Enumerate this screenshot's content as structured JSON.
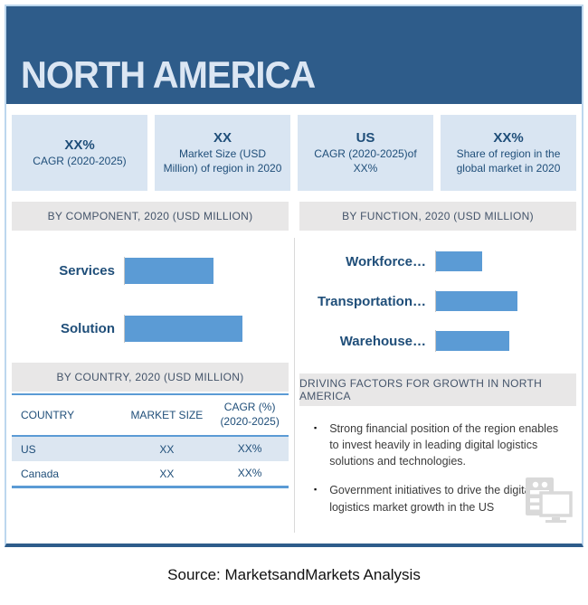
{
  "header": {
    "title": "NORTH AMERICA"
  },
  "stats": [
    {
      "value": "XX%",
      "label": "CAGR (2020-2025)"
    },
    {
      "value": "XX",
      "label": "Market Size (USD Million) of region in 2020"
    },
    {
      "value": "US",
      "label": "CAGR (2020-2025)of XX%"
    },
    {
      "value": "XX%",
      "label": "Share of region in the global market in 2020"
    }
  ],
  "left": {
    "component_header": "BY COMPONENT, 2020 (USD MILLION)",
    "country_header": "BY COUNTRY, 2020 (USD MILLION)",
    "table": {
      "columns": [
        {
          "label": "COUNTRY",
          "sub": ""
        },
        {
          "label": "MARKET SIZE",
          "sub": ""
        },
        {
          "label": "CAGR (%)",
          "sub": "(2020-2025)"
        }
      ],
      "rows": [
        [
          "US",
          "XX",
          "XX%"
        ],
        [
          "Canada",
          "XX",
          "XX%"
        ]
      ]
    }
  },
  "right": {
    "function_header": "BY FUNCTION, 2020 (USD MILLION)",
    "driving_header": "DRIVING FACTORS FOR GROWTH IN NORTH AMERICA",
    "bullets": [
      "Strong financial position of the region enables to invest heavily in leading digital logistics solutions and technologies.",
      "Government initiatives to drive the digital logistics market growth in the US"
    ]
  },
  "chart_data": [
    {
      "type": "bar",
      "orientation": "horizontal",
      "title": "BY COMPONENT, 2020 (USD MILLION)",
      "categories": [
        "Services",
        "Solution"
      ],
      "values": [
        "XX",
        "XX"
      ],
      "bar_length_pct": [
        54,
        72
      ],
      "bar_color": "#5b9bd5",
      "note": "numeric values masked as XX in source; bar lengths estimated from pixel proportions"
    },
    {
      "type": "bar",
      "orientation": "horizontal",
      "title": "BY FUNCTION, 2020 (USD MILLION)",
      "categories": [
        "Workforce…",
        "Transportation…",
        "Warehouse…"
      ],
      "values": [
        "XX",
        "XX",
        "XX"
      ],
      "bar_length_pct": [
        33,
        58,
        52
      ],
      "bar_color": "#5b9bd5",
      "note": "numeric values masked as XX in source; bar lengths estimated from pixel proportions"
    }
  ],
  "footer": {
    "source": "Source: MarketsandMarkets Analysis"
  },
  "colors": {
    "header_bg": "#2e5c8a",
    "stat_box_bg": "#d9e5f2",
    "navy_text": "#1f4e79",
    "bar_blue": "#5b9bd5",
    "section_header_bg": "#e8e7e7",
    "section_header_text": "#44546a",
    "table_row_alt": "#dce6f1",
    "frame_border": "#bdd7ee"
  }
}
